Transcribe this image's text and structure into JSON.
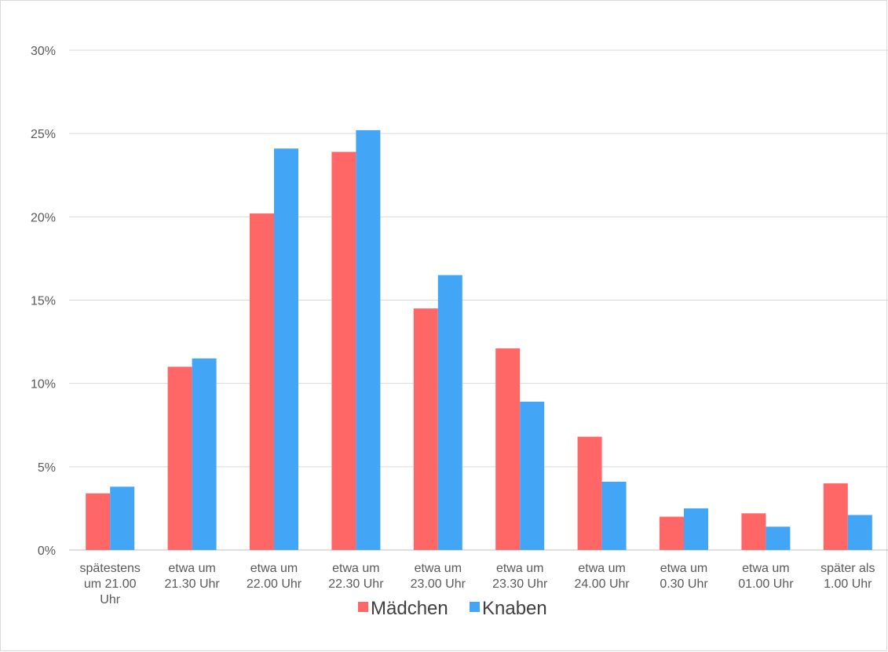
{
  "chart_data": {
    "type": "bar",
    "categories": [
      [
        "spätestens",
        "um 21.00",
        "Uhr"
      ],
      [
        "etwa um",
        "21.30 Uhr"
      ],
      [
        "etwa um",
        "22.00 Uhr"
      ],
      [
        "etwa um",
        "22.30 Uhr"
      ],
      [
        "etwa um",
        "23.00 Uhr"
      ],
      [
        "etwa um",
        "23.30 Uhr"
      ],
      [
        "etwa um",
        "24.00 Uhr"
      ],
      [
        "etwa um",
        "0.30 Uhr"
      ],
      [
        "etwa um",
        "01.00 Uhr"
      ],
      [
        "später als",
        "1.00 Uhr"
      ]
    ],
    "series": [
      {
        "name": "Mädchen",
        "color": "#ff6666",
        "values": [
          3.4,
          11.0,
          20.2,
          23.9,
          14.5,
          12.1,
          6.8,
          2.0,
          2.2,
          4.0
        ]
      },
      {
        "name": "Knaben",
        "color": "#42a5f5",
        "values": [
          3.8,
          11.5,
          24.1,
          25.2,
          16.5,
          8.9,
          4.1,
          2.5,
          1.4,
          2.1
        ]
      }
    ],
    "yticks": [
      "0%",
      "5%",
      "10%",
      "15%",
      "20%",
      "25%",
      "30%"
    ],
    "ylim": [
      0,
      30
    ],
    "grid": true,
    "legend": "bottom"
  }
}
